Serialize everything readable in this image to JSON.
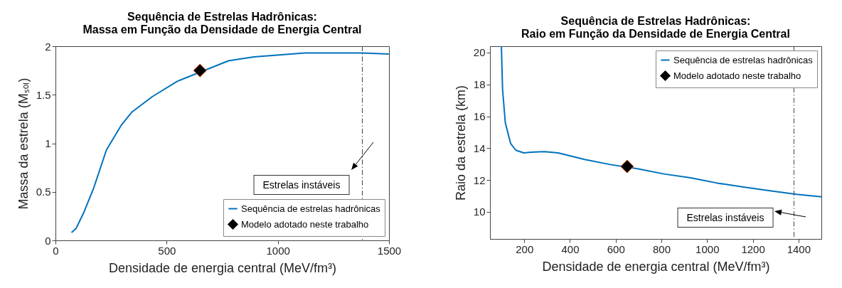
{
  "chart_data": [
    {
      "type": "line",
      "title": "Sequência de Estrelas Hadrônicas:",
      "subtitle": "Massa em Função da Densidade de Energia Central",
      "xlabel": "Densidade de energia central (MeV/fm³)",
      "ylabel": "Massa da estrela (Mₛₒₗ)",
      "xlim": [
        0,
        1500
      ],
      "ylim": [
        0,
        2
      ],
      "xticks": [
        0,
        500,
        1000,
        1500
      ],
      "yticks": [
        0,
        0.5,
        1,
        1.5,
        2
      ],
      "legend": "bottom right",
      "series": [
        {
          "name": "Sequência de estrelas hadrônicas",
          "color": "#0072bd",
          "x": [
            72,
            92,
            126,
            172,
            229,
            297,
            343,
            435,
            549,
            778,
            892,
            1007,
            1121,
            1236,
            1380,
            1499
          ],
          "values": [
            0.08,
            0.12,
            0.28,
            0.54,
            0.93,
            1.19,
            1.32,
            1.48,
            1.64,
            1.85,
            1.89,
            1.91,
            1.93,
            1.93,
            1.93,
            1.92
          ]
        },
        {
          "name": "Modelo adotado neste trabalho",
          "type": "scatter",
          "marker": "diamond",
          "color": "#000000",
          "x": [
            650
          ],
          "values": [
            1.75
          ]
        }
      ],
      "ref_lines": [
        {
          "axis": "x",
          "value": 1380,
          "color": "#404040",
          "line_style": "dashed"
        }
      ],
      "annotations": [
        "Estrelas instáveis"
      ]
    },
    {
      "type": "line",
      "title": "Sequência de Estrelas Hadrônicas:",
      "subtitle": "Raio em Função da Densidade de Energia Central",
      "xlabel": "Densidade de energia central (MeV/fm³)",
      "ylabel": "Raio da estrela (km)",
      "xlim": [
        50,
        1500
      ],
      "ylim": [
        8.3,
        20.4
      ],
      "xticks": [
        200,
        400,
        600,
        800,
        1000,
        1200,
        1400
      ],
      "yticks": [
        10,
        12,
        14,
        16,
        18,
        20
      ],
      "legend": "top right",
      "series": [
        {
          "name": "Sequência de estrelas hadrônicas",
          "color": "#0072bd",
          "x": [
            100,
            105,
            117,
            140,
            163,
            198,
            232,
            289,
            348,
            464,
            580,
            695,
            811,
            927,
            1043,
            1159,
            1275,
            1391,
            1500
          ],
          "values": [
            20.4,
            17.7,
            15.6,
            14.3,
            13.87,
            13.7,
            13.75,
            13.78,
            13.7,
            13.29,
            12.96,
            12.71,
            12.38,
            12.14,
            11.81,
            11.56,
            11.32,
            11.1,
            10.95
          ]
        },
        {
          "name": "Modelo adotado neste trabalho",
          "type": "scatter",
          "marker": "diamond",
          "color": "#000000",
          "x": [
            650
          ],
          "values": [
            12.85
          ]
        }
      ],
      "ref_lines": [
        {
          "axis": "x",
          "value": 1380,
          "color": "#404040",
          "line_style": "dashed"
        }
      ],
      "annotations": [
        "Estrelas instáveis"
      ]
    }
  ]
}
